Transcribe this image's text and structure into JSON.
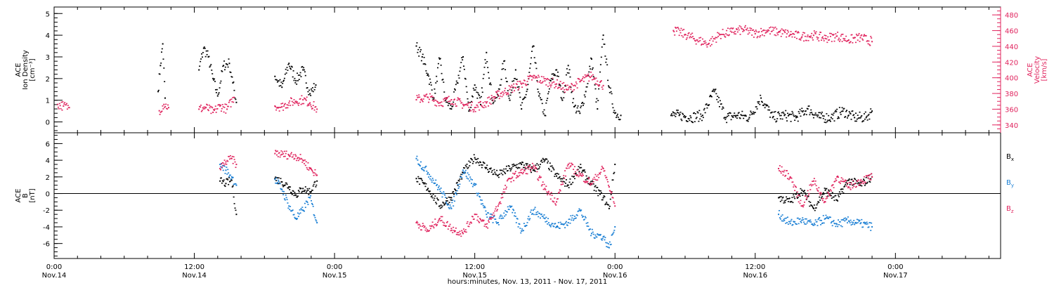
{
  "colors": {
    "black": "#000000",
    "magenta": "#e0245e",
    "blue": "#1a7fd4"
  },
  "chart_data": [
    {
      "type": "scatter",
      "panel": "top",
      "ylabel_lines": [
        "ACE",
        "Ion Density",
        "[cm⁻³]"
      ],
      "y2label_lines": [
        "ACE",
        "Velocity",
        "[km/s]"
      ],
      "ylim": [
        -0.5,
        5.3
      ],
      "y2lim": [
        330,
        490
      ],
      "yticks": [
        0,
        1,
        2,
        3,
        4,
        5
      ],
      "y2ticks": [
        340,
        360,
        380,
        400,
        420,
        440,
        460,
        480
      ],
      "y_tick_labels": [
        "0",
        "1",
        "2",
        "3",
        "4",
        "5"
      ],
      "y2_tick_labels": [
        "340",
        "360",
        "380",
        "400",
        "420",
        "440",
        "460",
        "480"
      ],
      "series": [
        {
          "color": "#000000",
          "axis": "left",
          "x": [
            8.9,
            9.1,
            9.3,
            9.5,
            12.4,
            12.8,
            13.2,
            13.6,
            14.0,
            14.5,
            15.0,
            15.3,
            15.6,
            18.9,
            19.5,
            20.1,
            20.7,
            21.3,
            21.9,
            22.4,
            31.0,
            31.5,
            32.0,
            32.5,
            33.0,
            33.5,
            34.0,
            34.5,
            35.0,
            35.5,
            36.0,
            36.5,
            37.0,
            37.5,
            38.0,
            38.5,
            39.0,
            39.5,
            40.0,
            40.5,
            41.0,
            41.5,
            42.0,
            42.5,
            43.0,
            43.5,
            44.0,
            44.5,
            45.0,
            45.5,
            46.0,
            46.5,
            47.0,
            47.5,
            48.0,
            48.5,
            52.8,
            53.5,
            54.5,
            55.5,
            56.5,
            57.5,
            58.5,
            59.5,
            60.5,
            61.5,
            62.5,
            63.5,
            64.5,
            65.5,
            66.5,
            67.5,
            68.5,
            69.5,
            70.0
          ],
          "values": [
            1.4,
            2.6,
            3.6,
            1.1,
            2.4,
            3.4,
            3.0,
            2.0,
            1.2,
            2.6,
            2.7,
            1.8,
            0.9,
            2.1,
            1.6,
            2.7,
            1.9,
            2.4,
            1.3,
            1.7,
            3.5,
            3.0,
            2.2,
            1.1,
            2.9,
            1.0,
            0.6,
            1.8,
            3.0,
            0.5,
            1.7,
            0.8,
            3.2,
            1.0,
            1.2,
            2.8,
            1.0,
            2.4,
            0.6,
            1.5,
            3.5,
            1.2,
            0.3,
            1.9,
            2.4,
            1.0,
            2.6,
            0.7,
            0.4,
            1.4,
            2.9,
            0.6,
            4.0,
            1.6,
            0.4,
            0.3,
            0.3,
            0.3,
            0.2,
            0.3,
            1.4,
            0.2,
            0.3,
            0.2,
            1.1,
            0.2,
            0.3,
            0.2,
            0.6,
            0.2,
            0.2,
            0.5,
            0.2,
            0.2,
            0.5
          ]
        },
        {
          "color": "#e0245e",
          "axis": "right",
          "x": [
            0.3,
            0.8,
            1.3,
            9.0,
            9.4,
            9.8,
            12.4,
            13.0,
            13.6,
            14.2,
            14.8,
            15.4,
            18.9,
            19.5,
            20.1,
            20.7,
            21.3,
            21.9,
            22.5,
            31.0,
            32.0,
            33.0,
            34.0,
            35.0,
            36.0,
            37.0,
            38.0,
            39.0,
            40.0,
            41.0,
            42.0,
            43.0,
            44.0,
            45.0,
            46.0,
            47.0,
            53.0,
            54.0,
            55.0,
            56.0,
            57.0,
            58.0,
            59.0,
            60.0,
            61.0,
            62.0,
            63.0,
            64.0,
            65.0,
            66.0,
            67.0,
            68.0,
            69.0,
            70.0
          ],
          "values": [
            366,
            364,
            362,
            358,
            366,
            362,
            360,
            362,
            356,
            364,
            360,
            375,
            364,
            363,
            368,
            370,
            372,
            368,
            360,
            372,
            375,
            368,
            372,
            366,
            362,
            368,
            378,
            385,
            392,
            400,
            396,
            392,
            385,
            395,
            402,
            390,
            460,
            455,
            448,
            443,
            455,
            458,
            461,
            456,
            460,
            458,
            455,
            452,
            454,
            450,
            453,
            448,
            451,
            446
          ]
        }
      ]
    },
    {
      "type": "scatter",
      "panel": "bottom",
      "ylabel_lines": [
        "ACE",
        "B",
        "[nT]"
      ],
      "ylim": [
        -7.8,
        7.3
      ],
      "yticks": [
        -6,
        -4,
        -2,
        0,
        2,
        4,
        6
      ],
      "y_tick_labels": [
        "-6",
        "-4",
        "-2",
        "0",
        "2",
        "4",
        "6"
      ],
      "series": [
        {
          "name": "B",
          "sub": "x",
          "color": "#000000",
          "x": [
            14.2,
            14.7,
            15.2,
            15.6,
            18.9,
            19.5,
            20.1,
            20.7,
            21.3,
            21.9,
            22.5,
            31.0,
            32.0,
            33.0,
            34.0,
            35.0,
            36.0,
            37.0,
            38.0,
            39.0,
            40.0,
            41.0,
            42.0,
            43.0,
            44.0,
            45.0,
            46.0,
            47.0,
            47.5,
            48.0,
            62.0,
            63.0,
            64.0,
            65.0,
            66.0,
            67.0,
            68.0,
            69.0,
            70.0
          ],
          "values": [
            1.5,
            1.2,
            1.6,
            -2.5,
            1.8,
            1.4,
            0.8,
            -0.2,
            0.6,
            0.2,
            1.5,
            1.8,
            0.6,
            -1.5,
            -0.5,
            2.5,
            4.3,
            3.1,
            2.2,
            3.0,
            3.5,
            2.8,
            4.0,
            2.1,
            1.0,
            3.1,
            1.1,
            -0.5,
            -1.8,
            3.5,
            -0.5,
            -1.0,
            0.4,
            -1.8,
            0.4,
            -0.8,
            1.6,
            1.0,
            2.0
          ]
        },
        {
          "name": "B",
          "sub": "y",
          "color": "#1a7fd4",
          "x": [
            14.2,
            14.7,
            15.2,
            15.6,
            18.9,
            19.5,
            20.1,
            20.7,
            21.3,
            21.9,
            22.5,
            31.0,
            32.0,
            33.0,
            34.0,
            35.0,
            36.0,
            37.0,
            38.0,
            39.0,
            40.0,
            41.0,
            42.0,
            43.0,
            44.0,
            45.0,
            46.0,
            47.0,
            47.5,
            48.0,
            62.0,
            63.0,
            64.0,
            65.0,
            66.0,
            67.0,
            68.0,
            69.0,
            70.0
          ],
          "values": [
            3.5,
            2.8,
            2.0,
            1.0,
            1.7,
            0.5,
            -1.5,
            -3.0,
            -2.0,
            -0.5,
            -3.5,
            4.2,
            2.5,
            0.5,
            -1.8,
            2.8,
            1.0,
            -2.5,
            -3.5,
            -1.5,
            -4.5,
            -2.0,
            -3.0,
            -4.0,
            -3.5,
            -2.0,
            -4.8,
            -5.2,
            -6.5,
            -4.0,
            -2.5,
            -3.6,
            -3.2,
            -3.8,
            -3.0,
            -3.7,
            -3.3,
            -3.6,
            -4.0
          ]
        },
        {
          "name": "B",
          "sub": "z",
          "color": "#e0245e",
          "x": [
            14.2,
            14.7,
            15.2,
            15.6,
            18.9,
            19.5,
            20.1,
            20.7,
            21.3,
            21.9,
            22.5,
            31.0,
            32.0,
            33.0,
            34.0,
            35.0,
            36.0,
            37.0,
            38.0,
            39.0,
            40.0,
            41.0,
            42.0,
            43.0,
            44.0,
            45.0,
            46.0,
            47.0,
            47.5,
            48.0,
            62.0,
            63.0,
            64.0,
            65.0,
            66.0,
            67.0,
            68.0,
            69.0,
            70.0
          ],
          "values": [
            3.0,
            3.8,
            4.2,
            3.5,
            4.8,
            4.7,
            4.6,
            4.5,
            4.0,
            3.0,
            2.2,
            -3.5,
            -4.5,
            -3.0,
            -4.2,
            -4.8,
            -2.5,
            -4.0,
            -1.5,
            1.8,
            2.5,
            3.2,
            0.6,
            -1.0,
            3.5,
            2.2,
            1.2,
            3.0,
            0.8,
            -1.5,
            3.0,
            2.0,
            -1.5,
            1.5,
            -1.0,
            2.0,
            0.8,
            1.5,
            2.0
          ]
        }
      ]
    }
  ],
  "xaxis": {
    "xlim": [
      0,
      81
    ],
    "major_ticks": [
      0,
      12,
      24,
      36,
      48,
      60,
      72
    ],
    "time_labels": [
      "0:00",
      "12:00",
      "0:00",
      "12:00",
      "0:00",
      "12:00",
      "0:00"
    ],
    "date_labels": [
      "Nov.14",
      "Nov.14",
      "Nov.15",
      "Nov.15",
      "Nov.16",
      "Nov.16",
      "Nov.17"
    ],
    "title": "hours:minutes, Nov. 13, 2011 - Nov. 17, 2011"
  },
  "legend": {
    "labels": [
      {
        "text": "B",
        "sub": "x"
      },
      {
        "text": "B",
        "sub": "y"
      },
      {
        "text": "B",
        "sub": "z"
      }
    ]
  }
}
